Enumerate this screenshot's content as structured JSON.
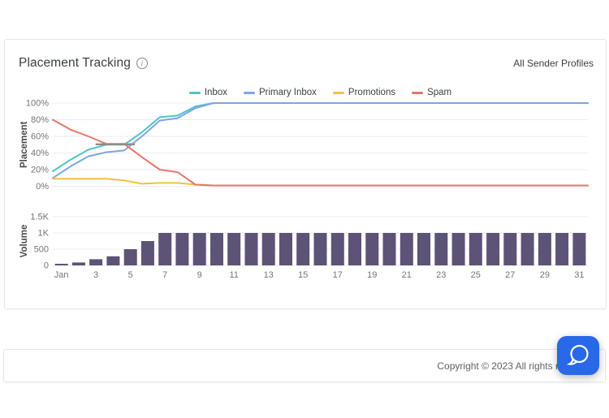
{
  "header": {
    "title": "Placement Tracking",
    "info_glyph": "i",
    "profiles_label": "All Sender Profiles"
  },
  "footer": {
    "copyright": "Copyright © 2023 All rights reserved."
  },
  "colors": {
    "card_border": "#e7e7e7",
    "grid": "#ececec",
    "tick_text": "#757575",
    "axis_title": "#4a4a4a",
    "chat_button": "#2968e8",
    "chat_icon": "#ffffff"
  },
  "chart_data": [
    {
      "type": "line",
      "title": "",
      "xlabel": "",
      "ylabel": "Placement",
      "ylim": [
        0,
        100
      ],
      "grid": true,
      "legend_position": "top",
      "x": [
        1,
        2,
        3,
        4,
        5,
        6,
        7,
        8,
        9,
        10,
        11,
        12,
        13,
        14,
        15,
        16,
        17,
        18,
        19,
        20,
        21,
        22,
        23,
        24,
        25,
        26,
        27,
        28,
        29,
        30,
        31
      ],
      "y_ticks": [
        {
          "label": "0%",
          "value": 0
        },
        {
          "label": "20%",
          "value": 20
        },
        {
          "label": "40%",
          "value": 40
        },
        {
          "label": "60%",
          "value": 60
        },
        {
          "label": "80%",
          "value": 80
        },
        {
          "label": "100%",
          "value": 100
        }
      ],
      "series": [
        {
          "name": "Inbox",
          "color": "#4dc5c0",
          "values": [
            18,
            32,
            44,
            50,
            50,
            65,
            83,
            85,
            96,
            100,
            100,
            100,
            100,
            100,
            100,
            100,
            100,
            100,
            100,
            100,
            100,
            100,
            100,
            100,
            100,
            100,
            100,
            100,
            100,
            100,
            100
          ]
        },
        {
          "name": "Primary Inbox",
          "color": "#7aa5ea",
          "values": [
            10,
            24,
            36,
            41,
            43,
            60,
            79,
            82,
            94,
            100,
            100,
            100,
            100,
            100,
            100,
            100,
            100,
            100,
            100,
            100,
            100,
            100,
            100,
            100,
            100,
            100,
            100,
            100,
            100,
            100,
            100
          ]
        },
        {
          "name": "Promotions",
          "color": "#f3c13d",
          "values": [
            9,
            9,
            9,
            9,
            7,
            3,
            4,
            4,
            2,
            1,
            1,
            1,
            1,
            1,
            1,
            1,
            1,
            1,
            1,
            1,
            1,
            1,
            1,
            1,
            1,
            1,
            1,
            1,
            1,
            1,
            1
          ]
        },
        {
          "name": "Spam",
          "color": "#e8756c",
          "values": [
            80,
            68,
            60,
            51,
            51,
            35,
            20,
            17,
            2,
            1,
            1,
            1,
            1,
            1,
            1,
            1,
            1,
            1,
            1,
            1,
            1,
            1,
            1,
            1,
            1,
            1,
            1,
            1,
            1,
            1,
            1
          ]
        }
      ],
      "overlap_annotation": {
        "from_day": 3.4,
        "to_day": 5.6,
        "value": 50.4,
        "color": "#8d8d8d"
      }
    },
    {
      "type": "bar",
      "title": "",
      "xlabel": "",
      "ylabel": "Volume",
      "ylim": [
        0,
        1500
      ],
      "grid": true,
      "bar_color": "#5d5377",
      "categories": [
        1,
        2,
        3,
        4,
        5,
        6,
        7,
        8,
        9,
        10,
        11,
        12,
        13,
        14,
        15,
        16,
        17,
        18,
        19,
        20,
        21,
        22,
        23,
        24,
        25,
        26,
        27,
        28,
        29,
        30,
        31
      ],
      "values": [
        50,
        90,
        190,
        280,
        500,
        750,
        1000,
        1000,
        1000,
        1000,
        1000,
        1000,
        1000,
        1000,
        1000,
        1000,
        1000,
        1000,
        1000,
        1000,
        1000,
        1000,
        1000,
        1000,
        1000,
        1000,
        1000,
        1000,
        1000,
        1000,
        1000
      ],
      "y_ticks": [
        {
          "label": "0",
          "value": 0
        },
        {
          "label": "500",
          "value": 500
        },
        {
          "label": "1K",
          "value": 1000
        },
        {
          "label": "1.5K",
          "value": 1500
        }
      ],
      "x_tick_labels": [
        {
          "label": "Jan",
          "day": 1
        },
        {
          "label": "3",
          "day": 3
        },
        {
          "label": "5",
          "day": 5
        },
        {
          "label": "7",
          "day": 7
        },
        {
          "label": "9",
          "day": 9
        },
        {
          "label": "11",
          "day": 11
        },
        {
          "label": "13",
          "day": 13
        },
        {
          "label": "15",
          "day": 15
        },
        {
          "label": "17",
          "day": 17
        },
        {
          "label": "19",
          "day": 19
        },
        {
          "label": "21",
          "day": 21
        },
        {
          "label": "23",
          "day": 23
        },
        {
          "label": "25",
          "day": 25
        },
        {
          "label": "27",
          "day": 27
        },
        {
          "label": "29",
          "day": 29
        },
        {
          "label": "31",
          "day": 31
        }
      ]
    }
  ]
}
